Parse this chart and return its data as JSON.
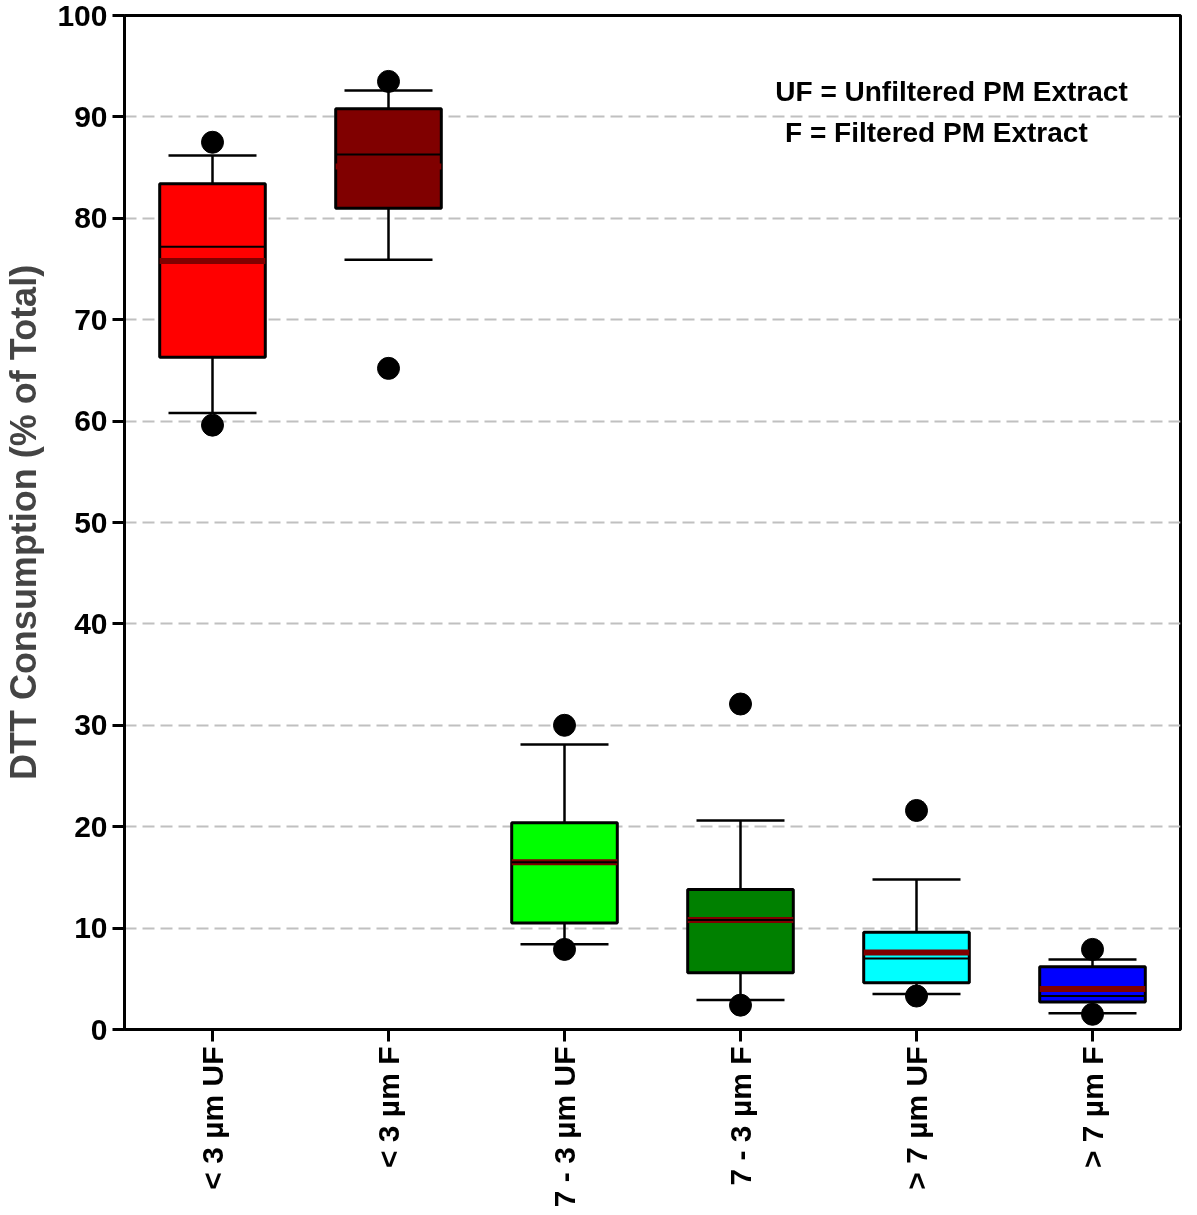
{
  "chart_data": {
    "type": "box",
    "ylabel": "DTT Consumption (% of Total)",
    "categories": [
      "< 3 µm UF",
      "< 3 µm F",
      "7 - 3 µm UF",
      "7 - 3 µm F",
      "> 7 µm UF",
      "> 7 µm F"
    ],
    "colors": [
      "#ff0000",
      "#800000",
      "#00ff00",
      "#008000",
      "#00ffff",
      "#0000ff"
    ],
    "boxes": [
      {
        "low": 60.8,
        "q1": 66.3,
        "median": 77.2,
        "q3": 83.4,
        "high": 86.2,
        "mean": 75.8,
        "outliers": [
          87.5,
          59.6
        ]
      },
      {
        "low": 75.9,
        "q1": 81.0,
        "median": 86.3,
        "q3": 90.8,
        "high": 92.6,
        "mean": 85.1,
        "outliers": [
          93.5,
          65.2
        ]
      },
      {
        "low": 8.4,
        "q1": 10.5,
        "median": 16.5,
        "q3": 20.4,
        "high": 28.1,
        "mean": 16.5,
        "outliers": [
          30.0,
          7.9
        ]
      },
      {
        "low": 2.9,
        "q1": 5.6,
        "median": 10.8,
        "q3": 13.8,
        "high": 20.6,
        "mean": 10.8,
        "outliers": [
          32.1,
          2.4
        ]
      },
      {
        "low": 3.5,
        "q1": 4.6,
        "median": 7.0,
        "q3": 9.6,
        "high": 14.8,
        "mean": 7.6,
        "outliers": [
          21.6,
          3.3
        ]
      },
      {
        "low": 1.6,
        "q1": 2.7,
        "median": 3.3,
        "q3": 6.2,
        "high": 6.9,
        "mean": 4.0,
        "outliers": [
          7.9,
          1.5
        ]
      }
    ],
    "ylim": [
      0,
      100
    ],
    "yticks": [
      0,
      10,
      20,
      30,
      40,
      50,
      60,
      70,
      80,
      90,
      100
    ],
    "grid": "y",
    "annotations": [
      "UF = Unfiltered PM Extract",
      "F = Filtered PM Extract"
    ]
  }
}
